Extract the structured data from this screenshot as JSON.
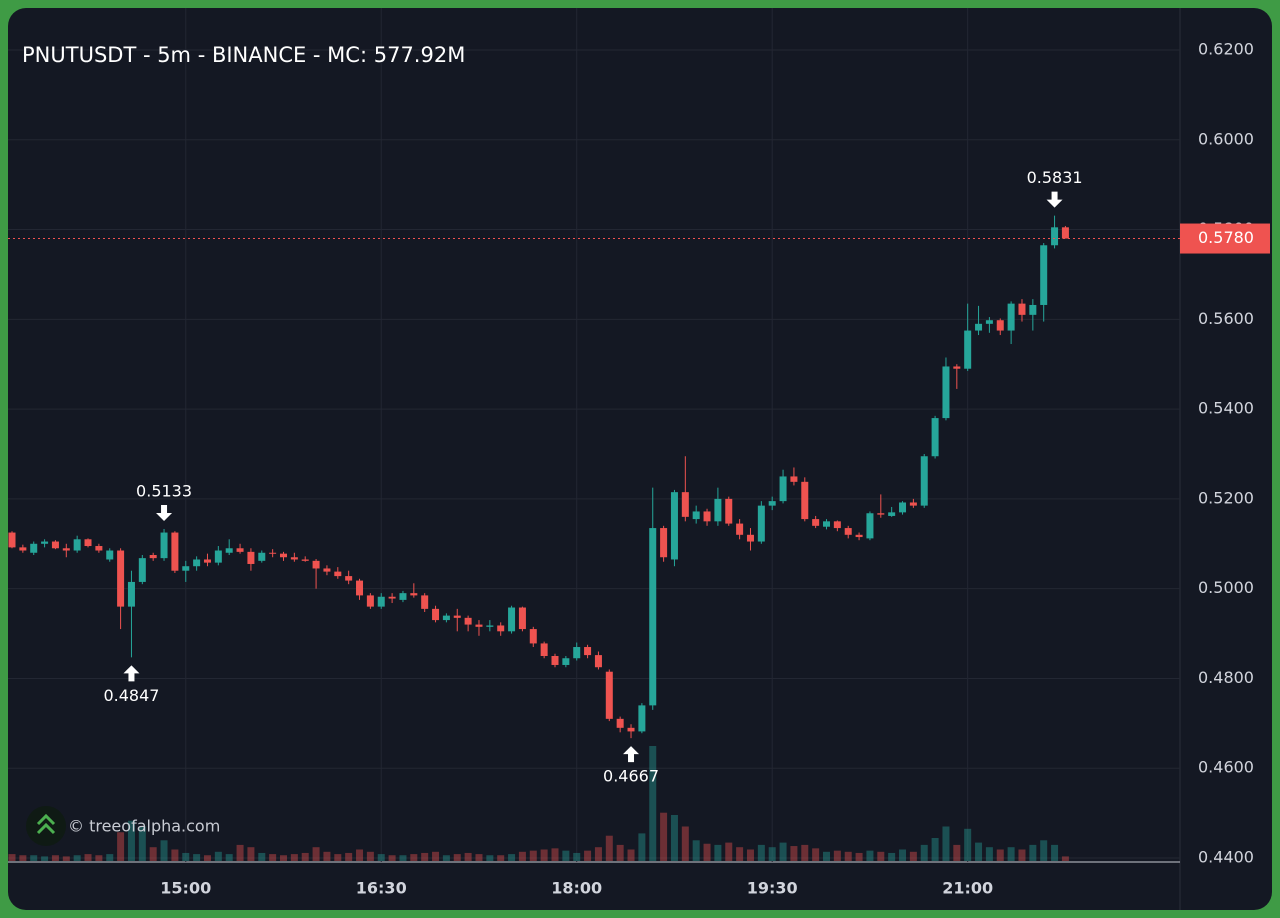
{
  "chart_data": {
    "type": "candlestick",
    "title": "PNUTUSDT - 5m - BINANCE - MC: 577.92M",
    "watermark": "© treeofalpha.com",
    "up_color": "#26a69a",
    "down_color": "#ef5350",
    "grid": true,
    "x": [
      "13:40",
      "13:45",
      "13:50",
      "13:55",
      "14:00",
      "14:05",
      "14:10",
      "14:15",
      "14:20",
      "14:25",
      "14:30",
      "14:35",
      "14:40",
      "14:45",
      "14:50",
      "14:55",
      "15:00",
      "15:05",
      "15:10",
      "15:15",
      "15:20",
      "15:25",
      "15:30",
      "15:35",
      "15:40",
      "15:45",
      "15:50",
      "15:55",
      "16:00",
      "16:05",
      "16:10",
      "16:15",
      "16:20",
      "16:25",
      "16:30",
      "16:35",
      "16:40",
      "16:45",
      "16:50",
      "16:55",
      "17:00",
      "17:05",
      "17:10",
      "17:15",
      "17:20",
      "17:25",
      "17:30",
      "17:35",
      "17:40",
      "17:45",
      "17:50",
      "17:55",
      "18:00",
      "18:05",
      "18:10",
      "18:15",
      "18:20",
      "18:25",
      "18:30",
      "18:35",
      "18:40",
      "18:45",
      "18:50",
      "18:55",
      "19:00",
      "19:05",
      "19:10",
      "19:15",
      "19:20",
      "19:25",
      "19:30",
      "19:35",
      "19:40",
      "19:45",
      "19:50",
      "19:55",
      "20:00",
      "20:05",
      "20:10",
      "20:15",
      "20:20",
      "20:25",
      "20:30",
      "20:35",
      "20:40",
      "20:45",
      "20:50",
      "20:55",
      "21:00",
      "21:05",
      "21:10",
      "21:15",
      "21:20",
      "21:25",
      "21:30",
      "21:35",
      "21:40",
      "21:45"
    ],
    "open": [
      0.5125,
      0.5092,
      0.508,
      0.51,
      0.5105,
      0.509,
      0.5085,
      0.511,
      0.5095,
      0.5065,
      0.5085,
      0.496,
      0.5015,
      0.5075,
      0.5068,
      0.5125,
      0.504,
      0.505,
      0.5065,
      0.5058,
      0.508,
      0.509,
      0.5082,
      0.5062,
      0.508,
      0.5078,
      0.507,
      0.5065,
      0.5062,
      0.5045,
      0.5038,
      0.5028,
      0.5018,
      0.4985,
      0.496,
      0.4982,
      0.4975,
      0.499,
      0.4985,
      0.4955,
      0.493,
      0.494,
      0.4935,
      0.492,
      0.4915,
      0.4918,
      0.4905,
      0.4958,
      0.491,
      0.4878,
      0.485,
      0.483,
      0.4845,
      0.487,
      0.4852,
      0.4815,
      0.471,
      0.469,
      0.4682,
      0.474,
      0.5135,
      0.5065,
      0.5215,
      0.5155,
      0.5172,
      0.515,
      0.52,
      0.5145,
      0.512,
      0.5105,
      0.5185,
      0.5195,
      0.525,
      0.5238,
      0.5155,
      0.5138,
      0.515,
      0.5135,
      0.512,
      0.5112,
      0.5168,
      0.5162,
      0.517,
      0.5192,
      0.5185,
      0.5295,
      0.538,
      0.5495,
      0.549,
      0.5575,
      0.559,
      0.5598,
      0.5575,
      0.5635,
      0.561,
      0.5632,
      0.5765,
      0.5805
    ],
    "high": [
      0.5128,
      0.5098,
      0.5105,
      0.511,
      0.5108,
      0.51,
      0.5118,
      0.5112,
      0.51,
      0.509,
      0.509,
      0.504,
      0.5075,
      0.508,
      0.5133,
      0.5128,
      0.5062,
      0.5072,
      0.5078,
      0.5095,
      0.511,
      0.51,
      0.509,
      0.5085,
      0.5088,
      0.5082,
      0.508,
      0.5072,
      0.5066,
      0.5052,
      0.5048,
      0.504,
      0.5022,
      0.499,
      0.499,
      0.499,
      0.4995,
      0.5012,
      0.499,
      0.4962,
      0.4945,
      0.4955,
      0.494,
      0.493,
      0.493,
      0.4925,
      0.4962,
      0.496,
      0.4915,
      0.4882,
      0.4855,
      0.485,
      0.488,
      0.4875,
      0.486,
      0.482,
      0.4715,
      0.4698,
      0.4745,
      0.5225,
      0.514,
      0.522,
      0.5295,
      0.5185,
      0.5178,
      0.5225,
      0.5205,
      0.5155,
      0.5135,
      0.5195,
      0.5205,
      0.5265,
      0.527,
      0.5248,
      0.5162,
      0.5155,
      0.5152,
      0.514,
      0.5125,
      0.5172,
      0.521,
      0.5182,
      0.5195,
      0.52,
      0.53,
      0.5385,
      0.5515,
      0.55,
      0.5635,
      0.563,
      0.5605,
      0.5602,
      0.564,
      0.5645,
      0.5645,
      0.577,
      0.5831,
      0.5808
    ],
    "low": [
      0.509,
      0.508,
      0.5075,
      0.5092,
      0.5088,
      0.507,
      0.508,
      0.5092,
      0.508,
      0.506,
      0.491,
      0.4847,
      0.501,
      0.5062,
      0.5062,
      0.5035,
      0.5015,
      0.504,
      0.505,
      0.5052,
      0.5075,
      0.5078,
      0.504,
      0.5058,
      0.507,
      0.5062,
      0.506,
      0.506,
      0.5,
      0.503,
      0.5022,
      0.501,
      0.4975,
      0.4955,
      0.4955,
      0.4968,
      0.497,
      0.498,
      0.4948,
      0.4925,
      0.4925,
      0.4905,
      0.4905,
      0.4895,
      0.4905,
      0.4895,
      0.49,
      0.4905,
      0.487,
      0.4845,
      0.4825,
      0.4825,
      0.484,
      0.4845,
      0.482,
      0.4705,
      0.468,
      0.4667,
      0.4678,
      0.473,
      0.506,
      0.505,
      0.515,
      0.5145,
      0.514,
      0.514,
      0.514,
      0.511,
      0.5085,
      0.51,
      0.5175,
      0.519,
      0.523,
      0.515,
      0.5135,
      0.5132,
      0.5128,
      0.5112,
      0.5108,
      0.5108,
      0.5158,
      0.516,
      0.5165,
      0.518,
      0.518,
      0.529,
      0.5375,
      0.5445,
      0.5485,
      0.5565,
      0.557,
      0.5565,
      0.5545,
      0.5595,
      0.5575,
      0.5595,
      0.5758,
      0.578
    ],
    "close": [
      0.5092,
      0.5085,
      0.51,
      0.5105,
      0.509,
      0.5085,
      0.511,
      0.5095,
      0.5085,
      0.5085,
      0.496,
      0.5015,
      0.5068,
      0.5068,
      0.5125,
      0.504,
      0.505,
      0.5065,
      0.5058,
      0.5085,
      0.509,
      0.5082,
      0.5055,
      0.508,
      0.5078,
      0.507,
      0.5065,
      0.5062,
      0.5045,
      0.5038,
      0.5028,
      0.5018,
      0.4985,
      0.496,
      0.4982,
      0.4978,
      0.499,
      0.4985,
      0.4955,
      0.493,
      0.494,
      0.4935,
      0.492,
      0.4915,
      0.4918,
      0.4905,
      0.4958,
      0.491,
      0.4878,
      0.485,
      0.483,
      0.4845,
      0.487,
      0.4852,
      0.4825,
      0.471,
      0.469,
      0.4682,
      0.474,
      0.5135,
      0.507,
      0.5215,
      0.516,
      0.5172,
      0.515,
      0.52,
      0.5145,
      0.512,
      0.5105,
      0.5185,
      0.5195,
      0.525,
      0.5238,
      0.5155,
      0.514,
      0.515,
      0.5135,
      0.512,
      0.5115,
      0.5168,
      0.5165,
      0.517,
      0.5192,
      0.5185,
      0.5295,
      0.538,
      0.5495,
      0.549,
      0.5575,
      0.559,
      0.5598,
      0.5575,
      0.5635,
      0.561,
      0.5632,
      0.5765,
      0.5805,
      0.578
    ],
    "volume": [
      6,
      5,
      5,
      4,
      5,
      4,
      5,
      6,
      5,
      6,
      25,
      35,
      30,
      12,
      18,
      10,
      7,
      6,
      5,
      8,
      6,
      14,
      12,
      7,
      6,
      5,
      6,
      7,
      12,
      8,
      6,
      7,
      10,
      8,
      6,
      5,
      5,
      6,
      7,
      8,
      5,
      6,
      7,
      6,
      5,
      5,
      6,
      8,
      9,
      10,
      11,
      9,
      7,
      9,
      12,
      22,
      14,
      10,
      24,
      100,
      42,
      40,
      30,
      18,
      15,
      14,
      16,
      12,
      10,
      14,
      12,
      16,
      13,
      14,
      11,
      8,
      9,
      8,
      7,
      9,
      8,
      7,
      10,
      8,
      14,
      20,
      30,
      14,
      28,
      16,
      12,
      10,
      12,
      10,
      14,
      18,
      14,
      4
    ],
    "ylim": [
      0.44,
      0.62
    ],
    "yticks": [
      {
        "value": 0.44,
        "label": "0.4400"
      },
      {
        "value": 0.46,
        "label": "0.4600"
      },
      {
        "value": 0.48,
        "label": "0.4800"
      },
      {
        "value": 0.5,
        "label": "0.5000"
      },
      {
        "value": 0.52,
        "label": "0.5200"
      },
      {
        "value": 0.54,
        "label": "0.5400"
      },
      {
        "value": 0.56,
        "label": "0.5600"
      },
      {
        "value": 0.58,
        "label": "0.5800"
      },
      {
        "value": 0.6,
        "label": "0.6000"
      },
      {
        "value": 0.62,
        "label": "0.6200"
      }
    ],
    "xticks": [
      "15:00",
      "16:30",
      "18:00",
      "19:30",
      "21:00"
    ],
    "last_price": {
      "value": 0.578,
      "label": "0.5780"
    },
    "annotations": [
      {
        "x": "14:50",
        "value": 0.5133,
        "position": "above"
      },
      {
        "x": "14:35",
        "value": 0.4847,
        "position": "below"
      },
      {
        "x": "18:25",
        "value": 0.4667,
        "position": "below"
      },
      {
        "x": "21:40",
        "value": 0.5831,
        "position": "above"
      }
    ]
  }
}
